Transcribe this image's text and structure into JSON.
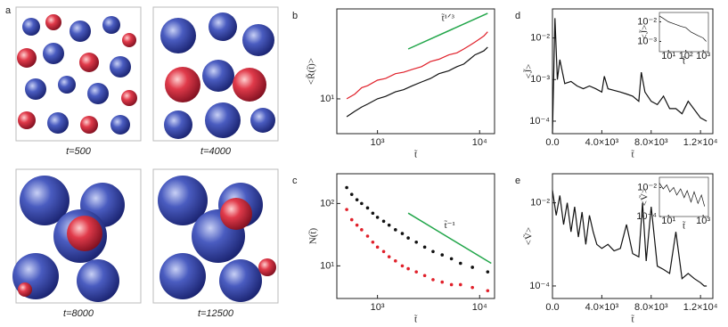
{
  "panel_a": {
    "label": "a",
    "captions": [
      "t=500",
      "t=4000",
      "t=8000",
      "t=12500"
    ]
  },
  "chart_data": [
    {
      "type": "line",
      "label": "b",
      "xscale": "log",
      "yscale": "log",
      "xlim": [
        400,
        14000
      ],
      "ylim": [
        5,
        60
      ],
      "xticks": [
        {
          "value": 1000,
          "label": "10³"
        },
        {
          "value": 10000,
          "label": "10⁴"
        }
      ],
      "yticks": [
        {
          "value": 10,
          "label": "10¹"
        }
      ],
      "xlabel": "t̃",
      "ylabel": "<R̃(t̃)>",
      "series": [
        {
          "name": "t̃¹ᐟ³",
          "kind": "line",
          "color": "#22a64a",
          "x": [
            2000,
            12000
          ],
          "values": [
            27,
            55
          ]
        },
        {
          "kind": "line",
          "color": "#e0202a",
          "x": [
            500,
            600,
            700,
            800,
            1000,
            1200,
            1500,
            1800,
            2200,
            2700,
            3300,
            4000,
            5000,
            6000,
            7000,
            8000,
            9000,
            10000,
            11000,
            12000
          ],
          "values": [
            10,
            11,
            12.5,
            13,
            14.5,
            15,
            16.5,
            17,
            18,
            19,
            21,
            22,
            24,
            25,
            27,
            29,
            31,
            33,
            35,
            38
          ]
        },
        {
          "kind": "line",
          "color": "#111111",
          "x": [
            500,
            600,
            700,
            800,
            1000,
            1200,
            1500,
            1800,
            2200,
            2700,
            3300,
            4000,
            5000,
            6000,
            7000,
            8000,
            9000,
            10000,
            11000,
            12000
          ],
          "values": [
            7,
            7.8,
            8.5,
            9,
            10,
            10.5,
            11.5,
            12,
            13,
            14,
            15,
            16.5,
            17.5,
            19,
            20,
            22,
            24,
            25,
            26,
            28
          ]
        }
      ]
    },
    {
      "type": "scatter",
      "label": "c",
      "xscale": "log",
      "yscale": "log",
      "xlim": [
        400,
        14000
      ],
      "ylim": [
        3,
        300
      ],
      "xticks": [
        {
          "value": 1000,
          "label": "10³"
        },
        {
          "value": 10000,
          "label": "10⁴"
        }
      ],
      "yticks": [
        {
          "value": 10,
          "label": "10¹"
        },
        {
          "value": 100,
          "label": "10²"
        }
      ],
      "xlabel": "t̃",
      "ylabel": "N(t̃)",
      "series": [
        {
          "name": "t̃⁻¹",
          "kind": "line",
          "color": "#22a64a",
          "x": [
            2000,
            13000
          ],
          "values": [
            70,
            11
          ]
        },
        {
          "kind": "dots",
          "color": "#111111",
          "x": [
            500,
            560,
            630,
            700,
            800,
            900,
            1000,
            1150,
            1300,
            1500,
            1750,
            2000,
            2400,
            2900,
            3500,
            4300,
            5300,
            6500,
            8500,
            12000
          ],
          "values": [
            180,
            140,
            115,
            100,
            85,
            70,
            60,
            52,
            45,
            38,
            33,
            28,
            24,
            20,
            17,
            15,
            13,
            11,
            9.5,
            8
          ]
        },
        {
          "kind": "dots",
          "color": "#e0202a",
          "x": [
            500,
            560,
            630,
            700,
            800,
            900,
            1000,
            1150,
            1300,
            1500,
            1750,
            2000,
            2400,
            2900,
            3500,
            4300,
            5300,
            6500,
            8500,
            12000
          ],
          "values": [
            80,
            55,
            45,
            38,
            30,
            24,
            20,
            17,
            14,
            12,
            10,
            9,
            8,
            7,
            6,
            5.5,
            5,
            5,
            4.5,
            4
          ]
        }
      ]
    },
    {
      "type": "line",
      "label": "d",
      "xscale": "linear",
      "yscale": "log",
      "xlim": [
        0,
        13000
      ],
      "ylim": [
        5e-05,
        0.05
      ],
      "xticks": [
        {
          "value": 0,
          "label": "0.0"
        },
        {
          "value": 4000,
          "label": "4.0×10³"
        },
        {
          "value": 8000,
          "label": "8.0×10³"
        },
        {
          "value": 12000,
          "label": "1.2×10⁴"
        }
      ],
      "yticks": [
        {
          "value": 0.0001,
          "label": "10⁻⁴"
        },
        {
          "value": 0.001,
          "label": "10⁻³"
        },
        {
          "value": 0.01,
          "label": "10⁻²"
        }
      ],
      "xlabel": "t̃",
      "ylabel": "<J̃>",
      "series": [
        {
          "kind": "line",
          "color": "#111111",
          "x": [
            0,
            200,
            400,
            600,
            1000,
            1500,
            2000,
            2500,
            3000,
            3500,
            4000,
            4200,
            4500,
            5000,
            5500,
            6000,
            6500,
            7000,
            7200,
            7500,
            8000,
            8500,
            9000,
            9500,
            10000,
            10500,
            11000,
            12000,
            12500
          ],
          "values": [
            5e-05,
            0.03,
            0.001,
            0.003,
            0.0008,
            0.0009,
            0.0007,
            0.0006,
            0.0007,
            0.0006,
            0.0005,
            0.0012,
            0.0006,
            0.00055,
            0.0005,
            0.00045,
            0.0004,
            0.0003,
            0.0015,
            0.0005,
            0.0003,
            0.00025,
            0.0004,
            0.0002,
            0.0002,
            0.00015,
            0.0003,
            0.00012,
            0.0001
          ]
        }
      ]
    },
    {
      "type": "line",
      "label": "e",
      "xscale": "linear",
      "yscale": "log",
      "xlim": [
        0,
        13000
      ],
      "ylim": [
        5e-05,
        0.05
      ],
      "xticks": [
        {
          "value": 0,
          "label": "0.0"
        },
        {
          "value": 4000,
          "label": "4.0×10³"
        },
        {
          "value": 8000,
          "label": "8.0×10³"
        },
        {
          "value": 12000,
          "label": "1.2×10⁴"
        }
      ],
      "yticks": [
        {
          "value": 0.0001,
          "label": "10⁻⁴"
        },
        {
          "value": 0.01,
          "label": "10⁻²"
        }
      ],
      "xlabel": "t̃",
      "ylabel": "<Ṽ>",
      "series": [
        {
          "kind": "line",
          "color": "#111111",
          "x": [
            0,
            300,
            600,
            900,
            1200,
            1500,
            1800,
            2100,
            2400,
            2700,
            3000,
            3300,
            3600,
            4000,
            4500,
            5000,
            5500,
            6000,
            6500,
            7000,
            7300,
            7600,
            8000,
            8500,
            9000,
            9500,
            10000,
            10500,
            11000,
            11500,
            12000,
            12300,
            12500
          ],
          "values": [
            0.02,
            0.005,
            0.015,
            0.003,
            0.01,
            0.002,
            0.008,
            0.0015,
            0.006,
            0.001,
            0.005,
            0.002,
            0.001,
            0.0008,
            0.001,
            0.0007,
            0.0008,
            0.003,
            0.0006,
            0.0005,
            0.01,
            0.0004,
            0.008,
            0.0003,
            0.00025,
            0.0002,
            0.002,
            0.00015,
            0.0002,
            0.00015,
            0.00012,
            0.0001,
            0.0001
          ]
        }
      ]
    },
    {
      "type": "line",
      "xscale": "log",
      "yscale": "log",
      "xlim": [
        3,
        2000
      ],
      "ylim": [
        0.0003,
        0.03
      ],
      "xticks": [
        {
          "value": 10,
          "label": "10¹"
        },
        {
          "value": 100,
          "label": "10²"
        },
        {
          "value": 1000,
          "label": "10³"
        }
      ],
      "yticks": [
        {
          "value": 0.001,
          "label": "10⁻³"
        },
        {
          "value": 0.01,
          "label": "10⁻²"
        }
      ],
      "xlabel": "t̃",
      "ylabel": "<J̃>",
      "series": [
        {
          "kind": "line",
          "color": "#111111",
          "x": [
            3,
            5,
            10,
            20,
            50,
            100,
            200,
            500,
            1000,
            1500
          ],
          "values": [
            0.02,
            0.015,
            0.01,
            0.008,
            0.006,
            0.005,
            0.003,
            0.002,
            0.0015,
            0.001
          ]
        }
      ]
    },
    {
      "type": "line",
      "xscale": "log",
      "yscale": "log",
      "xlim": [
        3,
        2000
      ],
      "ylim": [
        0.0001,
        0.05
      ],
      "xticks": [
        {
          "value": 10,
          "label": "10¹"
        },
        {
          "value": 1000,
          "label": "10³"
        }
      ],
      "yticks": [
        {
          "value": 0.0001,
          "label": "10⁻⁴"
        },
        {
          "value": 0.01,
          "label": "10⁻²"
        }
      ],
      "xlabel": "t̃",
      "ylabel": "<Ṽ>",
      "series": [
        {
          "kind": "line",
          "color": "#111111",
          "x": [
            3,
            5,
            8,
            12,
            20,
            30,
            50,
            80,
            120,
            200,
            300,
            500,
            800,
            1200
          ],
          "values": [
            0.02,
            0.008,
            0.015,
            0.005,
            0.01,
            0.003,
            0.008,
            0.002,
            0.006,
            0.001,
            0.005,
            0.0008,
            0.003,
            0.0005
          ]
        }
      ]
    }
  ]
}
